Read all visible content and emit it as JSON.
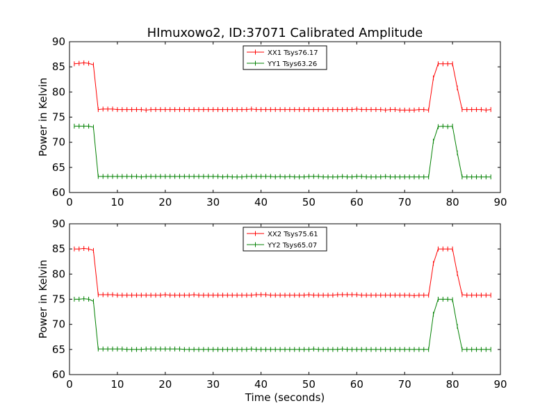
{
  "figure": {
    "title": "HImuxowo2, ID:37071 Calibrated Amplitude",
    "xlabel": "Time (seconds)"
  },
  "chart_data": [
    {
      "type": "line",
      "ylabel": "Power in Kelvin",
      "xlim": [
        0,
        90
      ],
      "ylim": [
        60,
        90
      ],
      "xticks": [
        "0",
        "10",
        "20",
        "30",
        "40",
        "50",
        "60",
        "70",
        "80",
        "90"
      ],
      "yticks": [
        "60",
        "65",
        "70",
        "75",
        "80",
        "85",
        "90"
      ],
      "legend_position": "top-center",
      "grid": false,
      "x": [
        1,
        2,
        3,
        4,
        5,
        6,
        7,
        8,
        9,
        10,
        11,
        12,
        13,
        14,
        15,
        16,
        17,
        18,
        19,
        20,
        21,
        22,
        23,
        24,
        25,
        26,
        27,
        28,
        29,
        30,
        31,
        32,
        33,
        34,
        35,
        36,
        37,
        38,
        39,
        40,
        41,
        42,
        43,
        44,
        45,
        46,
        47,
        48,
        49,
        50,
        51,
        52,
        53,
        54,
        55,
        56,
        57,
        58,
        59,
        60,
        61,
        62,
        63,
        64,
        65,
        66,
        67,
        68,
        69,
        70,
        71,
        72,
        73,
        74,
        75,
        76,
        77,
        78,
        79,
        80,
        81,
        82,
        83,
        84,
        85,
        86,
        87,
        88
      ],
      "series": [
        {
          "name": "XX1 Tsys76.17",
          "color": "#ff0000",
          "values": [
            85.6,
            85.7,
            85.8,
            85.7,
            85.4,
            76.5,
            76.6,
            76.6,
            76.6,
            76.5,
            76.5,
            76.5,
            76.5,
            76.5,
            76.5,
            76.4,
            76.5,
            76.5,
            76.5,
            76.5,
            76.5,
            76.5,
            76.5,
            76.5,
            76.5,
            76.5,
            76.5,
            76.5,
            76.5,
            76.5,
            76.5,
            76.5,
            76.5,
            76.5,
            76.5,
            76.5,
            76.5,
            76.6,
            76.5,
            76.5,
            76.5,
            76.5,
            76.5,
            76.5,
            76.5,
            76.5,
            76.5,
            76.5,
            76.5,
            76.5,
            76.5,
            76.5,
            76.5,
            76.5,
            76.5,
            76.5,
            76.5,
            76.5,
            76.5,
            76.6,
            76.5,
            76.5,
            76.5,
            76.5,
            76.5,
            76.4,
            76.5,
            76.5,
            76.4,
            76.4,
            76.4,
            76.4,
            76.5,
            76.5,
            76.4,
            82.8,
            85.6,
            85.6,
            85.6,
            85.6,
            80.8,
            76.5,
            76.5,
            76.5,
            76.5,
            76.5,
            76.4,
            76.5
          ]
        },
        {
          "name": "YY1 Tsys63.26",
          "color": "#008000",
          "values": [
            73.2,
            73.2,
            73.2,
            73.2,
            73.0,
            63.2,
            63.2,
            63.2,
            63.2,
            63.2,
            63.2,
            63.2,
            63.2,
            63.2,
            63.1,
            63.2,
            63.2,
            63.2,
            63.2,
            63.2,
            63.2,
            63.2,
            63.2,
            63.2,
            63.2,
            63.2,
            63.2,
            63.2,
            63.2,
            63.2,
            63.2,
            63.1,
            63.2,
            63.1,
            63.1,
            63.1,
            63.2,
            63.2,
            63.2,
            63.2,
            63.2,
            63.2,
            63.1,
            63.2,
            63.1,
            63.2,
            63.1,
            63.1,
            63.1,
            63.2,
            63.2,
            63.2,
            63.1,
            63.1,
            63.1,
            63.1,
            63.2,
            63.1,
            63.1,
            63.2,
            63.2,
            63.1,
            63.1,
            63.1,
            63.1,
            63.2,
            63.1,
            63.1,
            63.1,
            63.1,
            63.1,
            63.1,
            63.1,
            63.1,
            63.1,
            70.2,
            73.1,
            73.2,
            73.1,
            73.2,
            67.9,
            63.1,
            63.1,
            63.1,
            63.1,
            63.1,
            63.1,
            63.1
          ]
        }
      ]
    },
    {
      "type": "line",
      "ylabel": "Power in Kelvin",
      "xlim": [
        0,
        90
      ],
      "ylim": [
        60,
        90
      ],
      "xticks": [
        "0",
        "10",
        "20",
        "30",
        "40",
        "50",
        "60",
        "70",
        "80",
        "90"
      ],
      "yticks": [
        "60",
        "65",
        "70",
        "75",
        "80",
        "85",
        "90"
      ],
      "legend_position": "top-center",
      "grid": false,
      "x": [
        1,
        2,
        3,
        4,
        5,
        6,
        7,
        8,
        9,
        10,
        11,
        12,
        13,
        14,
        15,
        16,
        17,
        18,
        19,
        20,
        21,
        22,
        23,
        24,
        25,
        26,
        27,
        28,
        29,
        30,
        31,
        32,
        33,
        34,
        35,
        36,
        37,
        38,
        39,
        40,
        41,
        42,
        43,
        44,
        45,
        46,
        47,
        48,
        49,
        50,
        51,
        52,
        53,
        54,
        55,
        56,
        57,
        58,
        59,
        60,
        61,
        62,
        63,
        64,
        65,
        66,
        67,
        68,
        69,
        70,
        71,
        72,
        73,
        74,
        75,
        76,
        77,
        78,
        79,
        80,
        81,
        82,
        83,
        84,
        85,
        86,
        87,
        88
      ],
      "series": [
        {
          "name": "XX2 Tsys75.61",
          "color": "#ff0000",
          "values": [
            85.0,
            85.0,
            85.1,
            85.0,
            84.7,
            75.9,
            75.9,
            75.9,
            75.9,
            75.8,
            75.8,
            75.8,
            75.8,
            75.8,
            75.8,
            75.8,
            75.8,
            75.8,
            75.8,
            75.9,
            75.8,
            75.8,
            75.8,
            75.8,
            75.8,
            75.9,
            75.8,
            75.8,
            75.8,
            75.8,
            75.8,
            75.8,
            75.8,
            75.8,
            75.8,
            75.8,
            75.8,
            75.8,
            75.9,
            75.9,
            75.9,
            75.8,
            75.8,
            75.8,
            75.8,
            75.8,
            75.8,
            75.8,
            75.8,
            75.9,
            75.8,
            75.8,
            75.8,
            75.8,
            75.8,
            75.9,
            75.9,
            75.9,
            75.9,
            75.9,
            75.8,
            75.8,
            75.8,
            75.8,
            75.8,
            75.8,
            75.8,
            75.8,
            75.8,
            75.8,
            75.8,
            75.7,
            75.8,
            75.8,
            75.8,
            82.1,
            85.0,
            85.0,
            85.0,
            85.0,
            80.1,
            75.9,
            75.8,
            75.8,
            75.8,
            75.8,
            75.8,
            75.8
          ]
        },
        {
          "name": "YY2 Tsys65.07",
          "color": "#008000",
          "values": [
            75.0,
            75.0,
            75.1,
            75.0,
            74.6,
            65.1,
            65.1,
            65.1,
            65.1,
            65.1,
            65.1,
            65.0,
            65.0,
            65.0,
            65.0,
            65.1,
            65.1,
            65.1,
            65.1,
            65.1,
            65.1,
            65.1,
            65.1,
            65.0,
            65.0,
            65.0,
            65.0,
            65.0,
            65.0,
            65.0,
            65.0,
            65.0,
            65.0,
            65.0,
            65.0,
            65.0,
            65.0,
            65.1,
            65.0,
            65.0,
            65.0,
            65.0,
            65.0,
            65.0,
            65.0,
            65.0,
            65.0,
            65.0,
            65.0,
            65.0,
            65.1,
            65.0,
            65.0,
            65.0,
            65.0,
            65.0,
            65.1,
            65.0,
            65.0,
            65.0,
            65.0,
            65.0,
            65.0,
            65.0,
            65.0,
            65.0,
            65.0,
            65.0,
            65.0,
            65.0,
            65.0,
            65.0,
            65.0,
            65.0,
            65.0,
            72.0,
            75.0,
            75.0,
            75.0,
            74.9,
            69.6,
            65.0,
            65.0,
            65.0,
            65.0,
            65.0,
            65.0,
            65.0
          ]
        }
      ]
    }
  ]
}
